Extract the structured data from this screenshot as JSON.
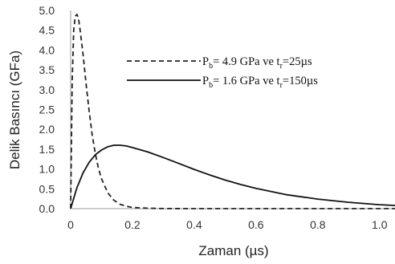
{
  "chart_data": {
    "type": "line",
    "xlabel": "Zaman (µs)",
    "ylabel": "Delik Basıncı (GFa)",
    "xlim": [
      0,
      1.05
    ],
    "ylim": [
      0,
      5.0
    ],
    "x_ticks": [
      "0",
      "0.2",
      "0.4",
      "0.6",
      "0.8",
      "1.0"
    ],
    "y_ticks": [
      "0.0",
      "0.5",
      "1.0",
      "1.5",
      "2.0",
      "2.5",
      "3.0",
      "3.5",
      "4.0",
      "4.5",
      "5.0"
    ],
    "grid": false,
    "legend_position": "top-right",
    "series": [
      {
        "name_parts": [
          "P",
          "b",
          "= 4.9 GPa  ve  t",
          "r",
          "=25µs"
        ],
        "style": "dashed",
        "color": "#222222",
        "x": [
          0,
          0.005,
          0.01,
          0.015,
          0.02,
          0.025,
          0.03,
          0.04,
          0.05,
          0.06,
          0.07,
          0.08,
          0.09,
          0.1,
          0.12,
          0.14,
          0.16,
          0.18,
          0.2,
          0.25,
          0.3,
          0.4,
          0.6,
          0.8,
          1.0,
          1.05
        ],
        "y": [
          0,
          3.2,
          4.5,
          4.85,
          4.9,
          4.82,
          4.55,
          3.9,
          3.15,
          2.45,
          1.85,
          1.38,
          1.02,
          0.75,
          0.4,
          0.21,
          0.11,
          0.06,
          0.03,
          0.01,
          0.003,
          0,
          0,
          0,
          0,
          0
        ]
      },
      {
        "name_parts": [
          "P",
          "b",
          "= 1.6 GPa  ve   t",
          "r",
          "=150µs"
        ],
        "style": "solid",
        "color": "#111111",
        "x": [
          0,
          0.02,
          0.04,
          0.06,
          0.08,
          0.1,
          0.12,
          0.14,
          0.16,
          0.18,
          0.2,
          0.25,
          0.3,
          0.35,
          0.4,
          0.45,
          0.5,
          0.55,
          0.6,
          0.7,
          0.8,
          0.9,
          1.0,
          1.05
        ],
        "y": [
          0,
          0.52,
          0.9,
          1.17,
          1.36,
          1.48,
          1.56,
          1.6,
          1.6,
          1.58,
          1.54,
          1.43,
          1.29,
          1.14,
          0.99,
          0.85,
          0.72,
          0.61,
          0.51,
          0.35,
          0.24,
          0.16,
          0.1,
          0.08
        ]
      }
    ]
  }
}
